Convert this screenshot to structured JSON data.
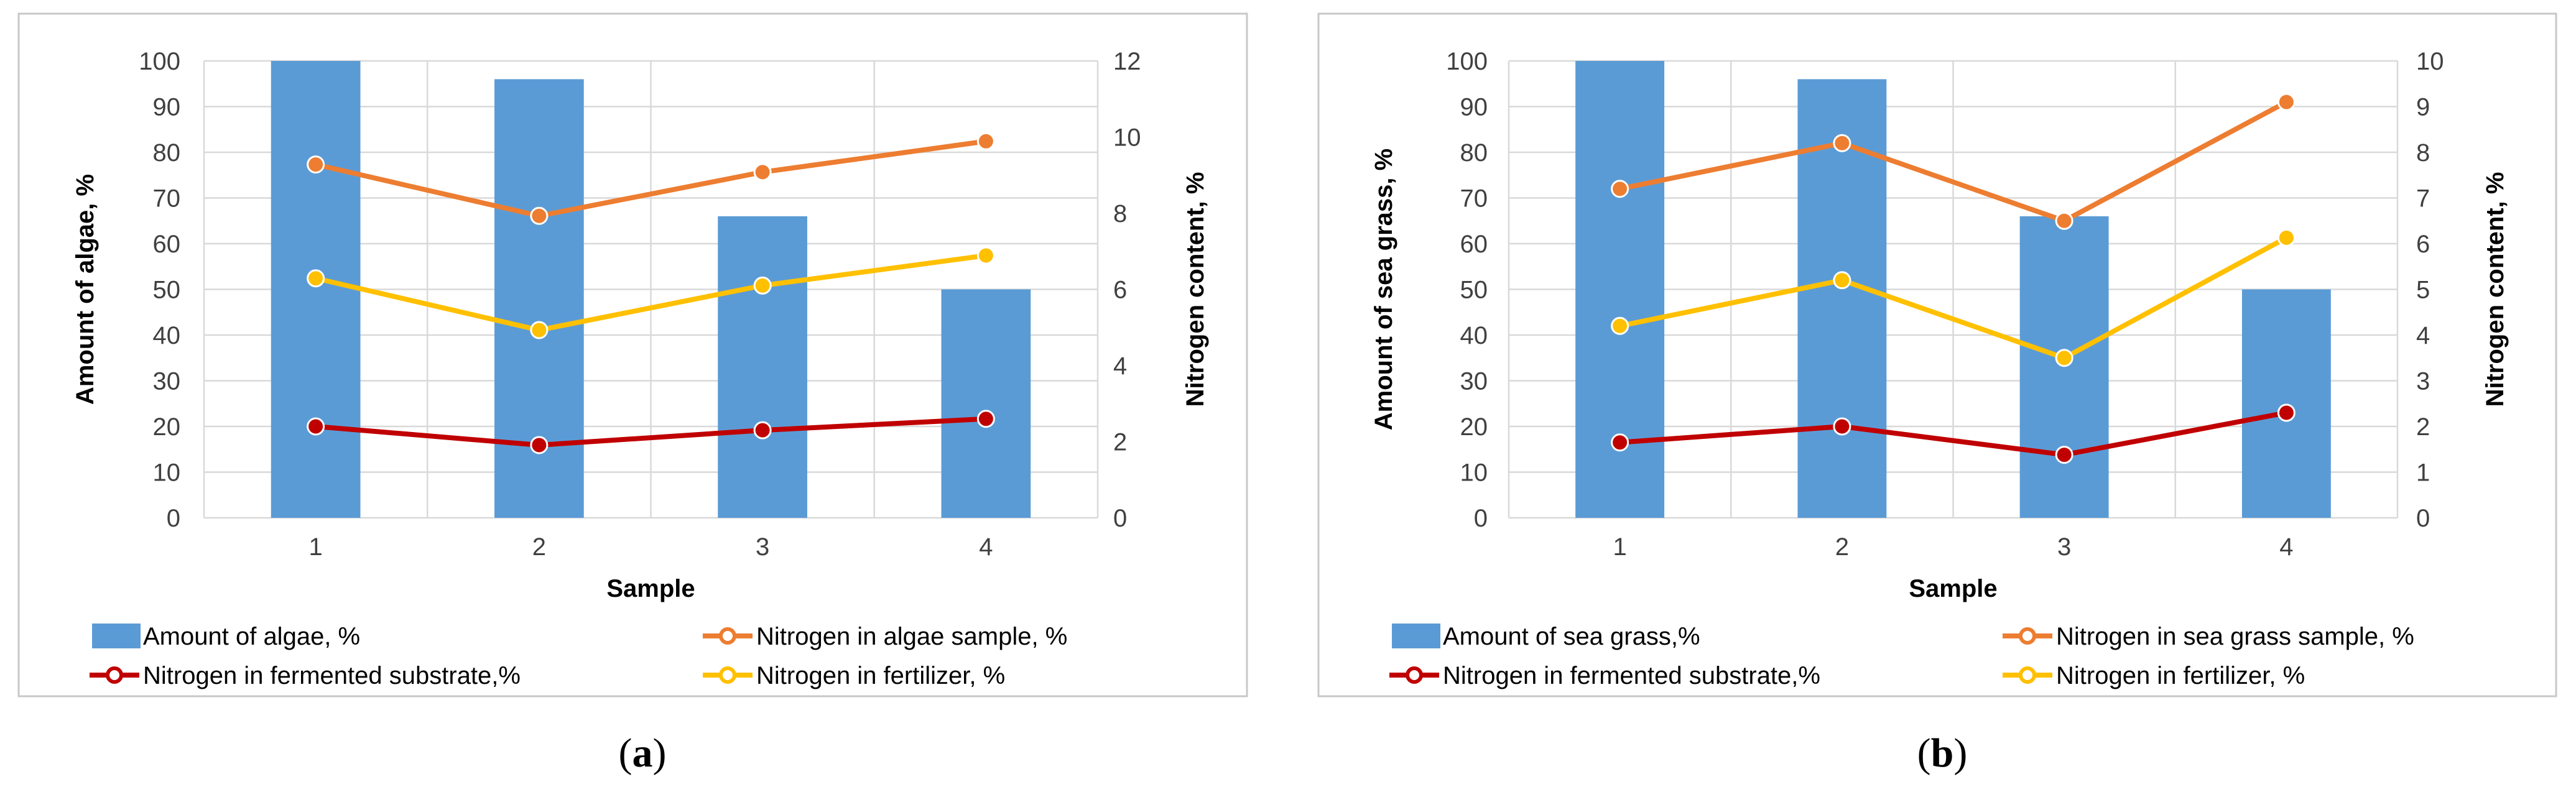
{
  "colors": {
    "bar": "#5b9bd5",
    "series_sample": "#ed7d31",
    "series_substrate": "#c00000",
    "series_fertilizer": "#ffc000",
    "grid": "#d9d9d9",
    "frame": "#c8c8c8"
  },
  "chart_data": [
    {
      "type": "bar+line",
      "caption_open": "(",
      "caption_letter": "a",
      "caption_close": ")",
      "categories": [
        "1",
        "2",
        "3",
        "4"
      ],
      "xlabel": "Sample",
      "ylabel_left": "Amount of algae, %",
      "ylabel_right": "Nitrogen content, %",
      "ylim_left": [
        0,
        100
      ],
      "ylim_right": [
        0,
        12
      ],
      "yticks_left": [
        "0",
        "10",
        "20",
        "30",
        "40",
        "50",
        "60",
        "70",
        "80",
        "90",
        "100"
      ],
      "yticks_right": [
        "0",
        "2",
        "4",
        "6",
        "8",
        "10",
        "12"
      ],
      "bars": {
        "name": "Amount of algae, %",
        "values": [
          100,
          96,
          66,
          50
        ]
      },
      "lines": [
        {
          "name": "Nitrogen in algae sample, %",
          "color_key": "series_sample",
          "values": [
            9.28,
            7.93,
            9.08,
            9.89
          ]
        },
        {
          "name": "Nitrogen in fermented substrate,%",
          "color_key": "series_substrate",
          "values": [
            2.4,
            1.91,
            2.3,
            2.6
          ]
        },
        {
          "name": "Nitrogen in fertilizer, %",
          "color_key": "series_fertilizer",
          "values": [
            6.29,
            4.93,
            6.1,
            6.89
          ]
        }
      ]
    },
    {
      "type": "bar+line",
      "caption_open": "(",
      "caption_letter": "b",
      "caption_close": ")",
      "categories": [
        "1",
        "2",
        "3",
        "4"
      ],
      "xlabel": "Sample",
      "ylabel_left": "Amount of sea grass, %",
      "ylabel_right": "Nitrogen content, %",
      "ylim_left": [
        0,
        100
      ],
      "ylim_right": [
        0,
        10
      ],
      "yticks_left": [
        "0",
        "10",
        "20",
        "30",
        "40",
        "50",
        "60",
        "70",
        "80",
        "90",
        "100"
      ],
      "yticks_right": [
        "0",
        "1",
        "2",
        "3",
        "4",
        "5",
        "6",
        "7",
        "8",
        "9",
        "10"
      ],
      "bars": {
        "name": "Amount of sea grass,%",
        "values": [
          100,
          96,
          66,
          50
        ]
      },
      "lines": [
        {
          "name": "Nitrogen in sea grass sample, %",
          "color_key": "series_sample",
          "values": [
            7.2,
            8.2,
            6.5,
            9.1
          ]
        },
        {
          "name": "Nitrogen in fermented substrate,%",
          "color_key": "series_substrate",
          "values": [
            1.65,
            2.0,
            1.38,
            2.3
          ]
        },
        {
          "name": "Nitrogen in fertilizer, %",
          "color_key": "series_fertilizer",
          "values": [
            4.2,
            5.2,
            3.5,
            6.13
          ]
        }
      ]
    }
  ]
}
